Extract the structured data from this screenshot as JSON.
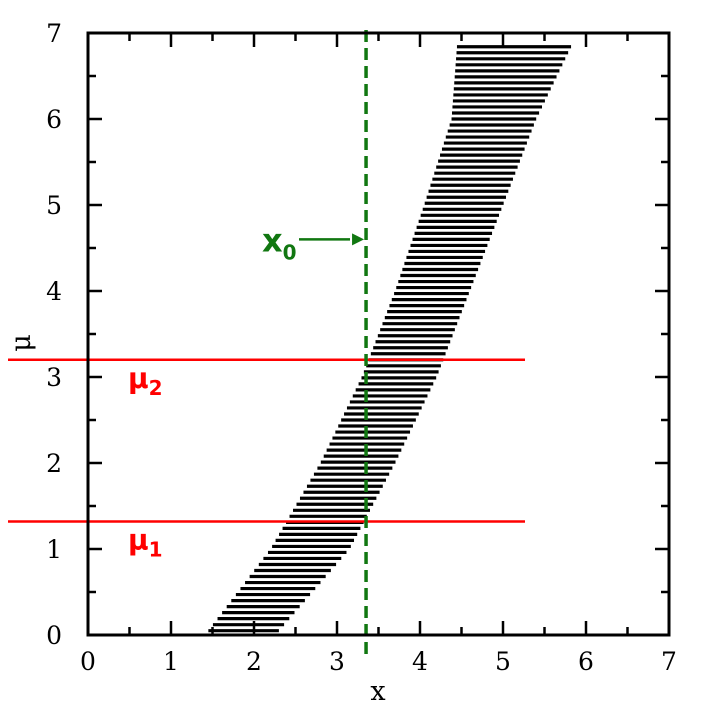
{
  "chart_data": {
    "type": "band",
    "xlabel": "x",
    "ylabel": "μ",
    "xlim": [
      0,
      7
    ],
    "ylim": [
      0,
      7
    ],
    "xticks": [
      "0",
      "1",
      "2",
      "3",
      "4",
      "5",
      "6",
      "7"
    ],
    "yticks": [
      "0",
      "1",
      "2",
      "3",
      "4",
      "5",
      "6",
      "7"
    ],
    "confidence_band": {
      "mu": [
        0.05,
        1.0,
        2.0,
        3.0,
        4.0,
        5.0,
        6.0,
        6.9
      ],
      "x_low": [
        1.45,
        2.2,
        2.8,
        3.3,
        3.7,
        4.05,
        4.38,
        4.45
      ],
      "x_high": [
        2.3,
        3.15,
        3.7,
        4.2,
        4.6,
        5.0,
        5.4,
        5.85
      ],
      "color": "#000000"
    },
    "vertical_line": {
      "x": 3.35,
      "label_main": "x",
      "label_sub": "0",
      "label_mu": 4.6,
      "color": "#117711"
    },
    "horizontal_lines": [
      {
        "mu": 3.2,
        "label_main": "μ",
        "label_sub": "2",
        "color": "#ff0000"
      },
      {
        "mu": 1.32,
        "label_main": "μ",
        "label_sub": "1",
        "color": "#ff0000"
      }
    ]
  }
}
